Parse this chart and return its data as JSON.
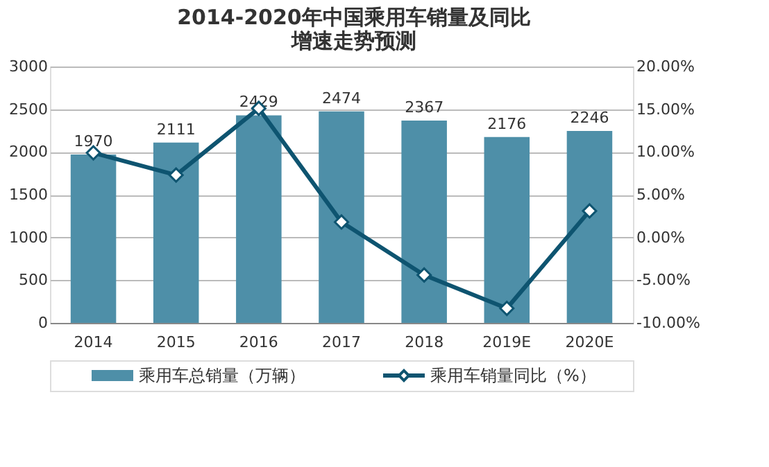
{
  "chart_data": {
    "type": "bar",
    "title": "2014-2020年中国乘用车销量及同比增速走势预测",
    "categories": [
      "2014",
      "2015",
      "2016",
      "2017",
      "2018",
      "2019E",
      "2020E"
    ],
    "series": [
      {
        "name": "乘用车总销量（万辆）",
        "color": "#4e8fa8",
        "values": [
          1970,
          2111,
          2429,
          2474,
          2367,
          2176,
          2246
        ],
        "value_labels": [
          "1970",
          "2111",
          "2429",
          "2474",
          "2367",
          "2176",
          "2246"
        ]
      },
      {
        "name": "乘用车销量同比（%）",
        "type": "line",
        "axis": "y2",
        "color": "#0e5470",
        "marker": "diamond",
        "values": [
          9.9,
          7.3,
          15.1,
          1.8,
          -4.4,
          -8.3,
          3.1
        ]
      }
    ],
    "ylim": [
      0,
      3000
    ],
    "yticks": [
      0,
      500,
      1000,
      1500,
      2000,
      2500,
      3000
    ],
    "y2lim": [
      -10,
      20
    ],
    "y2ticks": [
      {
        "value": -10,
        "label": "-10.00%"
      },
      {
        "value": -5,
        "label": "-5.00%"
      },
      {
        "value": 0,
        "label": "0.00%"
      },
      {
        "value": 5,
        "label": "5.00%"
      },
      {
        "value": 10,
        "label": "10.00%"
      },
      {
        "value": 15,
        "label": "15.00%"
      },
      {
        "value": 20,
        "label": "20.00%"
      }
    ],
    "grid": "y",
    "legend": "bottom"
  }
}
